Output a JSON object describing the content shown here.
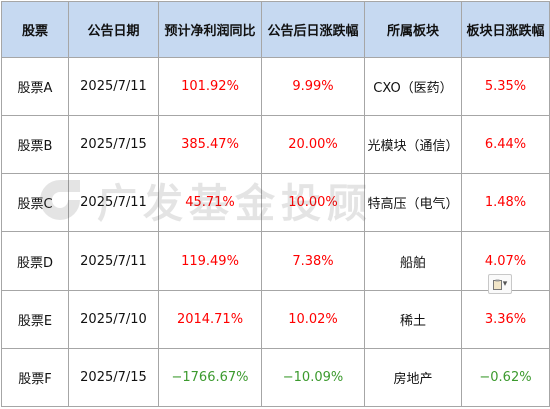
{
  "columns": [
    "股票",
    "公告日期",
    "预计净利润同比",
    "公告后日涨跌幅",
    "所属板块",
    "板块日涨跌幅"
  ],
  "rows": [
    {
      "stock": "股票A",
      "date": "2025/7/11",
      "profit_yoy": "101.92%",
      "post_change": "9.99%",
      "sector": "CXO（医药）",
      "sector_change": "5.35%"
    },
    {
      "stock": "股票B",
      "date": "2025/7/15",
      "profit_yoy": "385.47%",
      "post_change": "20.00%",
      "sector": "光模块（通信）",
      "sector_change": "6.44%"
    },
    {
      "stock": "股票C",
      "date": "2025/7/11",
      "profit_yoy": "45.71%",
      "post_change": "10.00%",
      "sector": "特高压（电气）",
      "sector_change": "1.48%"
    },
    {
      "stock": "股票D",
      "date": "2025/7/11",
      "profit_yoy": "119.49%",
      "post_change": "7.38%",
      "sector": "船舶",
      "sector_change": "4.07%"
    },
    {
      "stock": "股票E",
      "date": "2025/7/10",
      "profit_yoy": "2014.71%",
      "post_change": "10.02%",
      "sector": "稀土",
      "sector_change": "3.36%"
    },
    {
      "stock": "股票F",
      "date": "2025/7/15",
      "profit_yoy": "−1766.67%",
      "post_change": "−10.09%",
      "sector": "房地产",
      "sector_change": "−0.62%"
    }
  ],
  "watermark": {
    "text": "广发基金投顾",
    "logo": "gf-logo-icon"
  },
  "colors": {
    "header_bg": "#c6d9f1",
    "positive": "#ff0000",
    "negative": "#3c9a2e",
    "border": "#a6a6a6"
  },
  "paste_options": {
    "icon": "clipboard-icon",
    "dropdown_icon": "chevron-down-icon"
  }
}
